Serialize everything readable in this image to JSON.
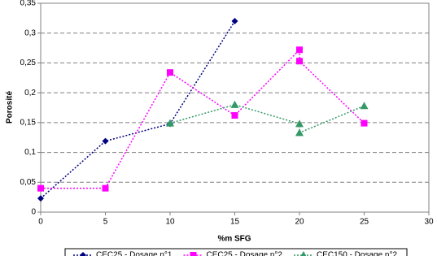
{
  "chart_data": {
    "type": "line",
    "xlabel": "%m SFG",
    "ylabel": "Porosité",
    "series": [
      {
        "name": "CEC25 - Dosage n°1",
        "color": "#000080",
        "marker": "diamond",
        "x": [
          0,
          5,
          10,
          15
        ],
        "values": [
          0.023,
          0.119,
          0.148,
          0.32
        ]
      },
      {
        "name": "CEC25 - Dosage n°2",
        "color": "#ff00ff",
        "marker": "square",
        "x": [
          0,
          5,
          10,
          15,
          20,
          20,
          25
        ],
        "values": [
          0.04,
          0.04,
          0.234,
          0.162,
          0.272,
          0.253,
          0.149
        ]
      },
      {
        "name": "CEC150 - Dosage n°2",
        "color": "#339966",
        "marker": "triangle",
        "x": [
          10,
          15,
          20,
          20,
          25
        ],
        "values": [
          0.149,
          0.18,
          0.148,
          0.133,
          0.178
        ]
      }
    ],
    "xlim": [
      0,
      30
    ],
    "xticks": [
      0,
      5,
      10,
      15,
      20,
      25,
      30
    ],
    "ylim": [
      0,
      0.35
    ],
    "yticks": [
      0,
      {
        "value": 0.05,
        "label": "0,05"
      },
      {
        "value": 0.1,
        "label": "0,1"
      },
      {
        "value": 0.15,
        "label": "0,15"
      },
      {
        "value": 0.2,
        "label": "0,2"
      },
      {
        "value": 0.25,
        "label": "0,25"
      },
      {
        "value": 0.3,
        "label": "0,3"
      },
      {
        "value": 0.35,
        "label": "0,35"
      }
    ],
    "grid": true,
    "legend": "bottom"
  }
}
